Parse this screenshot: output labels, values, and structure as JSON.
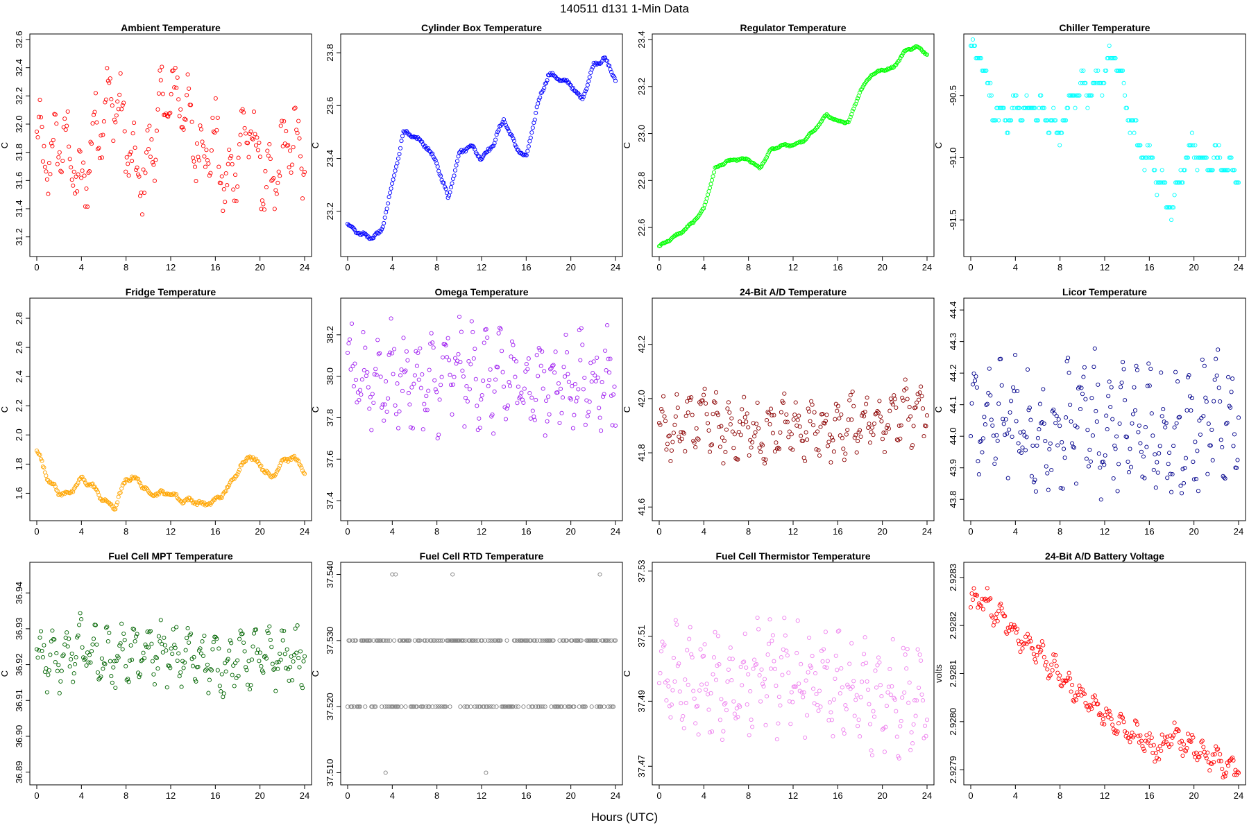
{
  "figure": {
    "title": "140511    d131    1-Min Data",
    "xlabel": "Hours (UTC)"
  },
  "chart_data": [
    {
      "type": "scatter",
      "title": "Ambient Temperature",
      "ylabel": "C",
      "color": "#ff0000",
      "xlim": [
        0,
        24
      ],
      "ylim": [
        31.1,
        32.6
      ],
      "xticks": [
        0,
        4,
        8,
        12,
        16,
        20,
        24
      ],
      "yticks": [
        31.2,
        31.4,
        31.6,
        31.8,
        32.0,
        32.2,
        32.4,
        32.6
      ],
      "ytick_labels": [
        "31.2",
        "31.4",
        "31.6",
        "31.8",
        "32.0",
        "32.2",
        "32.4",
        "32.6"
      ],
      "x": [
        0,
        1,
        2,
        3,
        4,
        5,
        6,
        7,
        8,
        9,
        10,
        11,
        12,
        13,
        14,
        15,
        16,
        17,
        18,
        19,
        20,
        21,
        22,
        23,
        24
      ],
      "y": [
        31.9,
        31.7,
        31.9,
        31.8,
        31.5,
        31.9,
        32.1,
        32.2,
        31.9,
        31.6,
        31.7,
        32.1,
        32.2,
        32.2,
        31.9,
        31.8,
        31.9,
        31.5,
        31.8,
        32.0,
        31.7,
        31.5,
        31.8,
        31.9,
        31.7
      ],
      "spread": 0.3
    },
    {
      "type": "scatter",
      "title": "Cylinder Box Temperature",
      "ylabel": "C",
      "color": "#0000ff",
      "xlim": [
        0,
        24
      ],
      "ylim": [
        23.05,
        23.85
      ],
      "xticks": [
        0,
        4,
        8,
        12,
        16,
        20,
        24
      ],
      "yticks": [
        23.2,
        23.4,
        23.6,
        23.8
      ],
      "ytick_labels": [
        "23.2",
        "23.4",
        "23.6",
        "23.8"
      ],
      "x": [
        0,
        1,
        2,
        3,
        4,
        5,
        6,
        7,
        8,
        9,
        10,
        11,
        12,
        13,
        14,
        15,
        16,
        17,
        18,
        19,
        20,
        21,
        22,
        23,
        24
      ],
      "y": [
        23.15,
        23.12,
        23.1,
        23.12,
        23.3,
        23.5,
        23.48,
        23.45,
        23.38,
        23.25,
        23.42,
        23.45,
        23.4,
        23.45,
        23.55,
        23.45,
        23.4,
        23.6,
        23.72,
        23.7,
        23.68,
        23.62,
        23.75,
        23.78,
        23.7
      ],
      "spread": 0.01
    },
    {
      "type": "scatter",
      "title": "Regulator Temperature",
      "ylabel": "C",
      "color": "#00ff00",
      "xlim": [
        0,
        24
      ],
      "ylim": [
        22.5,
        23.4
      ],
      "xticks": [
        0,
        4,
        8,
        12,
        16,
        20,
        24
      ],
      "yticks": [
        22.6,
        22.8,
        23.0,
        23.2,
        23.4
      ],
      "ytick_labels": [
        "22.6",
        "22.8",
        "23.0",
        "23.2",
        "23.4"
      ],
      "x": [
        0,
        1,
        2,
        3,
        4,
        5,
        6,
        7,
        8,
        9,
        10,
        11,
        12,
        13,
        14,
        15,
        16,
        17,
        18,
        19,
        20,
        21,
        22,
        23,
        24
      ],
      "y": [
        22.52,
        22.55,
        22.58,
        22.62,
        22.68,
        22.85,
        22.88,
        22.89,
        22.89,
        22.85,
        22.93,
        22.95,
        22.95,
        22.97,
        23.02,
        23.08,
        23.05,
        23.05,
        23.18,
        23.25,
        23.27,
        23.28,
        23.35,
        23.37,
        23.34
      ],
      "spread": 0.005
    },
    {
      "type": "scatter",
      "title": "Chiller Temperature",
      "ylabel": "C",
      "color": "#00ffff",
      "xlim": [
        0,
        24
      ],
      "ylim": [
        -91.75,
        -90.05
      ],
      "xticks": [
        0,
        4,
        8,
        12,
        16,
        20,
        24
      ],
      "yticks": [
        -91.5,
        -91.0,
        -90.5
      ],
      "ytick_labels": [
        "-91.5",
        "-91.0",
        "-90.5"
      ],
      "x": [
        0,
        1,
        2,
        3,
        4,
        5,
        6,
        7,
        8,
        9,
        10,
        11,
        12,
        13,
        14,
        15,
        16,
        17,
        18,
        19,
        20,
        21,
        22,
        23,
        24
      ],
      "y": [
        -90.1,
        -90.2,
        -90.6,
        -90.7,
        -90.6,
        -90.6,
        -90.6,
        -90.7,
        -90.8,
        -90.5,
        -90.4,
        -90.5,
        -90.3,
        -90.2,
        -90.6,
        -90.9,
        -91.0,
        -91.2,
        -91.4,
        -91.1,
        -90.9,
        -91.1,
        -91.0,
        -91.1,
        -91.1
      ],
      "spread": 0.12,
      "quantize": 0.1
    },
    {
      "type": "scatter",
      "title": "Fridge Temperature",
      "ylabel": "C",
      "color": "#ffa500",
      "xlim": [
        0,
        24
      ],
      "ylim": [
        1.45,
        2.9
      ],
      "xticks": [
        0,
        4,
        8,
        12,
        16,
        20,
        24
      ],
      "yticks": [
        1.6,
        1.8,
        2.0,
        2.2,
        2.4,
        2.6,
        2.8
      ],
      "ytick_labels": [
        "1.6",
        "1.8",
        "2.0",
        "2.2",
        "2.4",
        "2.6",
        "2.8"
      ],
      "x": [
        0,
        1,
        2,
        3,
        4,
        5,
        6,
        7,
        8,
        9,
        10,
        11,
        12,
        13,
        14,
        15,
        16,
        17,
        18,
        19,
        20,
        21,
        22,
        23,
        24
      ],
      "y": [
        1.9,
        1.7,
        1.6,
        1.6,
        1.7,
        1.65,
        1.55,
        1.5,
        1.7,
        1.7,
        1.6,
        1.6,
        1.6,
        1.55,
        1.55,
        1.52,
        1.55,
        1.62,
        1.75,
        1.86,
        1.8,
        1.7,
        1.82,
        1.85,
        1.75
      ],
      "spread": 0.02
    },
    {
      "type": "scatter",
      "title": "Omega Temperature",
      "ylabel": "C",
      "color": "#a020f0",
      "xlim": [
        0,
        24
      ],
      "ylim": [
        37.33,
        38.35
      ],
      "xticks": [
        0,
        4,
        8,
        12,
        16,
        20,
        24
      ],
      "yticks": [
        37.4,
        37.6,
        37.8,
        38.0,
        38.2
      ],
      "ytick_labels": [
        "37.4",
        "37.6",
        "37.8",
        "38.0",
        "38.2"
      ],
      "x": [
        0,
        1,
        2,
        3,
        4,
        5,
        6,
        7,
        8,
        9,
        10,
        11,
        12,
        13,
        14,
        15,
        16,
        17,
        18,
        19,
        20,
        21,
        22,
        23,
        24
      ],
      "y": [
        38.0,
        37.95,
        38.0,
        37.98,
        38.0,
        37.98,
        37.97,
        37.95,
        37.96,
        38.02,
        38.03,
        38.0,
        38.0,
        37.98,
        37.97,
        37.98,
        37.96,
        37.96,
        37.97,
        37.97,
        37.98,
        37.97,
        37.98,
        37.99,
        38.0
      ],
      "spread": 0.26
    },
    {
      "type": "scatter",
      "title": "24-Bit A/D Temperature",
      "ylabel": "C",
      "color": "#8b0000",
      "xlim": [
        0,
        24
      ],
      "ylim": [
        41.57,
        42.35
      ],
      "xticks": [
        0,
        4,
        8,
        12,
        16,
        20,
        24
      ],
      "yticks": [
        41.6,
        41.8,
        42.0,
        42.2
      ],
      "ytick_labels": [
        "41.6",
        "41.8",
        "42.0",
        "42.2"
      ],
      "x": [
        0,
        1,
        2,
        3,
        4,
        5,
        6,
        7,
        8,
        9,
        10,
        11,
        12,
        13,
        14,
        15,
        16,
        17,
        18,
        19,
        20,
        21,
        22,
        23,
        24
      ],
      "y": [
        41.9,
        41.88,
        41.9,
        41.9,
        41.95,
        41.9,
        41.88,
        41.88,
        41.9,
        41.85,
        41.9,
        41.9,
        41.88,
        41.88,
        41.9,
        41.88,
        41.88,
        41.9,
        41.92,
        41.92,
        41.93,
        41.94,
        41.94,
        41.95,
        41.95
      ],
      "spread": 0.12
    },
    {
      "type": "scatter",
      "title": "Licor Temperature",
      "ylabel": "C",
      "color": "#00008b",
      "xlim": [
        0,
        24
      ],
      "ylim": [
        43.75,
        44.42
      ],
      "xticks": [
        0,
        4,
        8,
        12,
        16,
        20,
        24
      ],
      "yticks": [
        43.8,
        43.9,
        44.0,
        44.1,
        44.2,
        44.3,
        44.4
      ],
      "ytick_labels": [
        "43.8",
        "43.9",
        "44.0",
        "44.1",
        "44.2",
        "44.3",
        "44.4"
      ],
      "x": [
        0,
        1,
        2,
        3,
        4,
        5,
        6,
        7,
        8,
        9,
        10,
        11,
        12,
        13,
        14,
        15,
        16,
        17,
        18,
        19,
        20,
        21,
        22,
        23,
        24
      ],
      "y": [
        44.05,
        44.05,
        44.05,
        44.05,
        44.05,
        44.0,
        44.0,
        44.0,
        44.0,
        44.05,
        44.1,
        44.05,
        44.0,
        44.02,
        44.02,
        44.02,
        44.05,
        44.03,
        44.0,
        44.0,
        44.0,
        44.03,
        44.05,
        44.05,
        44.05
      ],
      "spread": 0.22
    },
    {
      "type": "scatter",
      "title": "Fuel Cell MPT Temperature",
      "ylabel": "C",
      "color": "#006400",
      "xlim": [
        0,
        24
      ],
      "ylim": [
        36.888,
        36.947
      ],
      "xticks": [
        0,
        4,
        8,
        12,
        16,
        20,
        24
      ],
      "yticks": [
        36.89,
        36.9,
        36.91,
        36.92,
        36.93,
        36.94
      ],
      "ytick_labels": [
        "36.89",
        "36.90",
        "36.91",
        "36.92",
        "36.93",
        "36.94"
      ],
      "x": [
        0,
        1,
        2,
        3,
        4,
        5,
        6,
        7,
        8,
        9,
        10,
        11,
        12,
        13,
        14,
        15,
        16,
        17,
        18,
        19,
        20,
        21,
        22,
        23,
        24
      ],
      "y": [
        36.924,
        36.922,
        36.92,
        36.922,
        36.925,
        36.924,
        36.922,
        36.922,
        36.924,
        36.922,
        36.923,
        36.924,
        36.922,
        36.922,
        36.923,
        36.922,
        36.92,
        36.92,
        36.922,
        36.922,
        36.922,
        36.922,
        36.922,
        36.922,
        36.922
      ],
      "spread": 0.009
    },
    {
      "type": "scatter",
      "title": "Fuel Cell RTD Temperature",
      "ylabel": "C",
      "color": "#808080",
      "xlim": [
        0,
        24
      ],
      "ylim": [
        37.509,
        37.541
      ],
      "xticks": [
        0,
        4,
        8,
        12,
        16,
        20,
        24
      ],
      "yticks": [
        37.51,
        37.52,
        37.53,
        37.54
      ],
      "ytick_labels": [
        "37.510",
        "37.520",
        "37.530",
        "37.540"
      ],
      "levels": [
        37.52,
        37.53
      ],
      "outliers": [
        [
          3.4,
          37.51
        ],
        [
          4.0,
          37.54
        ],
        [
          4.3,
          37.54
        ],
        [
          9.4,
          37.54
        ],
        [
          12.4,
          37.51
        ],
        [
          22.6,
          37.54
        ]
      ]
    },
    {
      "type": "scatter",
      "title": "Fuel Cell Thermistor Temperature",
      "ylabel": "C",
      "color": "#ee82ee",
      "xlim": [
        0,
        24
      ],
      "ylim": [
        37.466,
        37.531
      ],
      "xticks": [
        0,
        4,
        8,
        12,
        16,
        20,
        24
      ],
      "yticks": [
        37.47,
        37.49,
        37.51,
        37.53
      ],
      "ytick_labels": [
        "37.47",
        "37.49",
        "37.51",
        "37.53"
      ],
      "x": [
        0,
        1,
        2,
        3,
        4,
        5,
        6,
        7,
        8,
        9,
        10,
        11,
        12,
        13,
        14,
        15,
        16,
        17,
        18,
        19,
        20,
        21,
        22,
        23,
        24
      ],
      "y": [
        37.498,
        37.496,
        37.496,
        37.494,
        37.494,
        37.494,
        37.494,
        37.495,
        37.496,
        37.498,
        37.498,
        37.497,
        37.496,
        37.495,
        37.495,
        37.494,
        37.494,
        37.492,
        37.492,
        37.49,
        37.491,
        37.491,
        37.492,
        37.492,
        37.493
      ],
      "spread": 0.018
    },
    {
      "type": "scatter",
      "title": "24-Bit A/D Battery Voltage",
      "ylabel": "volts",
      "color": "#ff0000",
      "xlim": [
        0,
        24
      ],
      "ylim": [
        2.92788,
        2.92832
      ],
      "xticks": [
        0,
        4,
        8,
        12,
        16,
        20,
        24
      ],
      "yticks": [
        2.9279,
        2.928,
        2.9281,
        2.9282,
        2.9283
      ],
      "ytick_labels": [
        "2.9279",
        "2.9280",
        "2.9281",
        "2.9282",
        "2.9283"
      ],
      "x": [
        0,
        1,
        2,
        3,
        4,
        5,
        6,
        7,
        8,
        9,
        10,
        11,
        12,
        13,
        14,
        15,
        16,
        17,
        18,
        19,
        20,
        21,
        22,
        23,
        24
      ],
      "y": [
        2.92825,
        2.92826,
        2.92823,
        2.92821,
        2.92818,
        2.92816,
        2.92815,
        2.92812,
        2.9281,
        2.92807,
        2.92805,
        2.92803,
        2.92801,
        2.928,
        2.92798,
        2.92797,
        2.92795,
        2.92794,
        2.92798,
        2.92796,
        2.92795,
        2.92793,
        2.92792,
        2.92791,
        2.9279
      ],
      "spread": 3e-05
    },
    {
      "_note": "panel grid layout only; not rendered"
    }
  ]
}
